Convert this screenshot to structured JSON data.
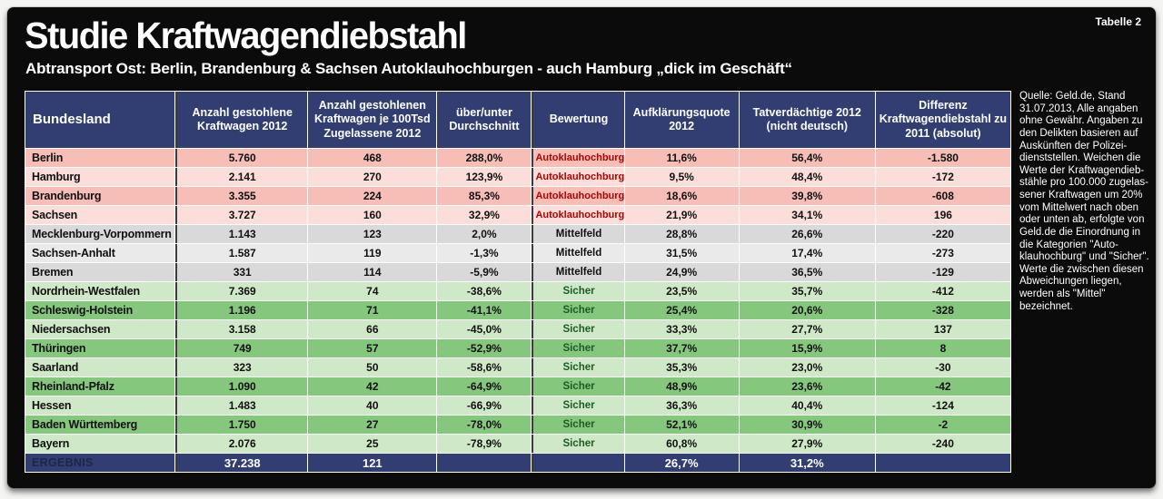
{
  "meta": {
    "corner_label": "Tabelle 2"
  },
  "header": {
    "title": "Studie Kraftwagendiebstahl",
    "subtitle": "Abtransport Ost: Berlin, Brandenburg & Sachsen Autoklauhochburgen - auch Hamburg „dick im Geschäft“"
  },
  "chart_data": {
    "type": "table",
    "title": "Studie Kraftwagendiebstahl",
    "columns": [
      "Bundesland",
      "Anzahl gestohlene Kraftwagen 2012",
      "Anzahl gestohlenen Kraftwagen je 100Tsd Zugelassene 2012",
      "über/unter Durchschnitt",
      "Bewertung",
      "Aufklärungsquote 2012",
      "Tatverdächtige 2012 (nicht deutsch)",
      "Differenz Kraftwagendiebstahl zu 2011 (absolut)"
    ],
    "column_keys": [
      "bundesland",
      "anzahl-gestohlene-2012",
      "je-100tsd-zugelassene-2012",
      "ueber-unter-durchschnitt",
      "bewertung",
      "aufklaerungsquote-2012",
      "tatverdaechtige-2012",
      "differenz-zu-2011"
    ],
    "rows": [
      {
        "land": "Berlin",
        "values": [
          "5.760",
          "468",
          "288,0%",
          "Autoklauhochburg",
          "11,6%",
          "56,4%",
          "-1.580"
        ],
        "group": "red",
        "shade": "dark"
      },
      {
        "land": "Hamburg",
        "values": [
          "2.141",
          "270",
          "123,9%",
          "Autoklauhochburg",
          "9,5%",
          "48,4%",
          "-172"
        ],
        "group": "red",
        "shade": "light"
      },
      {
        "land": "Brandenburg",
        "values": [
          "3.355",
          "224",
          "85,3%",
          "Autoklauhochburg",
          "18,6%",
          "39,8%",
          "-608"
        ],
        "group": "red",
        "shade": "dark"
      },
      {
        "land": "Sachsen",
        "values": [
          "3.727",
          "160",
          "32,9%",
          "Autoklauhochburg",
          "21,9%",
          "34,1%",
          "196"
        ],
        "group": "red",
        "shade": "light"
      },
      {
        "land": "Mecklenburg-Vorpommern",
        "values": [
          "1.143",
          "123",
          "2,0%",
          "Mittelfeld",
          "28,8%",
          "26,6%",
          "-220"
        ],
        "group": "gray",
        "shade": "dark"
      },
      {
        "land": "Sachsen-Anhalt",
        "values": [
          "1.587",
          "119",
          "-1,3%",
          "Mittelfeld",
          "31,5%",
          "17,4%",
          "-273"
        ],
        "group": "gray",
        "shade": "light"
      },
      {
        "land": "Bremen",
        "values": [
          "331",
          "114",
          "-5,9%",
          "Mittelfeld",
          "24,9%",
          "36,5%",
          "-129"
        ],
        "group": "gray",
        "shade": "dark"
      },
      {
        "land": "Nordrhein-Westfalen",
        "values": [
          "7.369",
          "74",
          "-38,6%",
          "Sicher",
          "23,5%",
          "35,7%",
          "-412"
        ],
        "group": "green",
        "shade": "light"
      },
      {
        "land": "Schleswig-Holstein",
        "values": [
          "1.196",
          "71",
          "-41,1%",
          "Sicher",
          "25,4%",
          "20,6%",
          "-328"
        ],
        "group": "green",
        "shade": "dark"
      },
      {
        "land": "Niedersachsen",
        "values": [
          "3.158",
          "66",
          "-45,0%",
          "Sicher",
          "33,3%",
          "27,7%",
          "137"
        ],
        "group": "green",
        "shade": "light"
      },
      {
        "land": "Thüringen",
        "values": [
          "749",
          "57",
          "-52,9%",
          "Sicher",
          "37,7%",
          "15,9%",
          "8"
        ],
        "group": "green",
        "shade": "dark"
      },
      {
        "land": "Saarland",
        "values": [
          "323",
          "50",
          "-58,6%",
          "Sicher",
          "35,3%",
          "23,0%",
          "-30"
        ],
        "group": "green",
        "shade": "light"
      },
      {
        "land": "Rheinland-Pfalz",
        "values": [
          "1.090",
          "42",
          "-64,9%",
          "Sicher",
          "48,9%",
          "23,6%",
          "-42"
        ],
        "group": "green",
        "shade": "dark"
      },
      {
        "land": "Hessen",
        "values": [
          "1.483",
          "40",
          "-66,9%",
          "Sicher",
          "36,3%",
          "40,4%",
          "-124"
        ],
        "group": "green",
        "shade": "light"
      },
      {
        "land": "Baden Württemberg",
        "values": [
          "1.750",
          "27",
          "-78,0%",
          "Sicher",
          "52,1%",
          "30,9%",
          "-2"
        ],
        "group": "green",
        "shade": "dark"
      },
      {
        "land": "Bayern",
        "values": [
          "2.076",
          "25",
          "-78,9%",
          "Sicher",
          "60,8%",
          "27,9%",
          "-240"
        ],
        "group": "green",
        "shade": "light"
      }
    ],
    "total": {
      "land": "ERGEBNIS",
      "values": [
        "37.238",
        "121",
        "",
        "",
        "26,7%",
        "31,2%",
        ""
      ]
    }
  },
  "note": "Quelle: Geld.de, Stand\n31.07.2013, Alle angaben\nohne Gewähr. Angaben zu\nden Delikten basieren auf\nAuskünften der Polizei-\ndienststellen. Weichen die\nWerte der Kraftwagendieb-\nstähle pro 100.000 zugelas-\nsener Kraftwagen um 20%\nvom Mittelwert nach oben\noder unten ab, erfolgte von\nGeld.de die Einordnung in\ndie Kategorien \"Auto-\nklauhochburg\" und \"Sicher\".\nWerte die zwischen diesen\nAbweichungen liegen,\nwerden als \"Mittel\"\nbezeichnet.",
  "colors": {
    "navy": "#323e72",
    "row-red-dark": "#f6beb6",
    "row-red-light": "#fbded9",
    "row-gray-dark": "#d9d9d9",
    "row-gray-light": "#eaeaea",
    "row-green-dark": "#86c77e",
    "row-green-light": "#cfe8c7",
    "text-red": "#b30000",
    "text-green": "#1c5c26",
    "text-dark": "#111111",
    "divider": "#3c3c3c",
    "total-label": "#1d2647"
  }
}
